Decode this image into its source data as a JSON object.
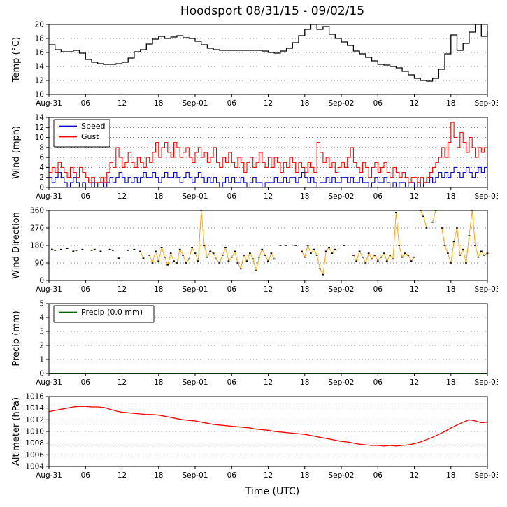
{
  "title": "Hoodsport 08/31/15 - 09/02/15",
  "xlabel": "Time (UTC)",
  "x_axis": {
    "unit": "hours since Aug-31 00:00 UTC",
    "range": [
      0,
      72
    ],
    "tick_positions": [
      0,
      6,
      12,
      18,
      24,
      30,
      36,
      42,
      48,
      54,
      60,
      66,
      72
    ],
    "tick_labels": [
      "Aug-31",
      "06",
      "12",
      "18",
      "Sep-01",
      "06",
      "12",
      "18",
      "Sep-02",
      "06",
      "12",
      "18",
      "Sep-03"
    ]
  },
  "chart_data": [
    {
      "type": "line",
      "ylabel": "Temp (°C)",
      "ylim": [
        10,
        20
      ],
      "yticks": [
        10,
        12,
        14,
        16,
        18,
        20
      ],
      "grid": true,
      "legend": false,
      "series": [
        {
          "name": "Temp",
          "color": "#000000",
          "style": "step",
          "width": 1.3,
          "x_start": 0,
          "x_step": 1,
          "values": [
            17.1,
            16.4,
            16.1,
            16.1,
            16.3,
            15.9,
            15.0,
            14.6,
            14.4,
            14.3,
            14.3,
            14.4,
            14.6,
            15.2,
            16.1,
            16.4,
            17.2,
            17.9,
            18.3,
            18.0,
            18.2,
            18.4,
            18.1,
            18.0,
            17.6,
            17.1,
            16.6,
            16.4,
            16.3,
            16.3,
            16.3,
            16.3,
            16.3,
            16.3,
            16.3,
            16.2,
            16.0,
            15.9,
            16.2,
            16.6,
            17.4,
            18.4,
            19.3,
            20.0,
            19.3,
            19.7,
            18.6,
            18.0,
            17.5,
            17.0,
            16.2,
            15.8,
            15.3,
            14.8,
            14.3,
            14.2,
            14.0,
            13.8,
            13.3,
            12.8,
            12.3,
            12.0,
            11.9,
            12.3,
            13.6,
            15.8,
            18.5,
            16.3,
            17.3,
            18.9,
            20.0,
            18.3,
            19.0
          ]
        }
      ]
    },
    {
      "type": "line",
      "ylabel": "Wind (mph)",
      "ylim": [
        0,
        14
      ],
      "yticks": [
        0,
        2,
        4,
        6,
        8,
        10,
        12,
        14
      ],
      "grid": true,
      "legend": true,
      "series": [
        {
          "name": "Speed",
          "color": "#0000cd",
          "style": "step",
          "width": 1.1,
          "x_start": 0,
          "x_step": 0.5,
          "values": [
            2,
            1,
            2,
            3,
            2,
            1,
            0,
            1,
            2,
            1,
            0,
            1,
            0,
            0,
            1,
            0,
            1,
            1,
            0,
            1,
            2,
            1,
            2,
            3,
            2,
            1,
            2,
            1,
            2,
            1,
            2,
            3,
            2,
            2,
            3,
            2,
            1,
            2,
            3,
            2,
            2,
            3,
            2,
            1,
            2,
            3,
            2,
            1,
            2,
            3,
            2,
            1,
            2,
            1,
            2,
            1,
            0,
            1,
            2,
            1,
            2,
            1,
            1,
            2,
            1,
            0,
            1,
            2,
            1,
            1,
            0,
            1,
            1,
            1,
            2,
            1,
            1,
            2,
            1,
            2,
            2,
            1,
            2,
            3,
            2,
            1,
            2,
            1,
            0,
            1,
            1,
            2,
            1,
            2,
            1,
            1,
            2,
            2,
            1,
            2,
            1,
            1,
            2,
            1,
            1,
            0,
            1,
            2,
            1,
            1,
            2,
            1,
            0,
            1,
            0,
            1,
            1,
            0,
            1,
            1,
            0,
            1,
            0,
            1,
            1,
            2,
            1,
            2,
            3,
            2,
            3,
            2,
            3,
            4,
            3,
            2,
            3,
            4,
            3,
            2,
            3,
            4,
            3,
            4,
            4
          ]
        },
        {
          "name": "Gust",
          "color": "#ff0000",
          "style": "step",
          "width": 1.1,
          "x_start": 0,
          "x_step": 0.5,
          "values": [
            3,
            4,
            3,
            5,
            4,
            3,
            2,
            4,
            3,
            2,
            4,
            3,
            2,
            1,
            2,
            1,
            1,
            2,
            1,
            3,
            5,
            4,
            8,
            6,
            4,
            5,
            7,
            5,
            4,
            6,
            5,
            4,
            6,
            5,
            7,
            9,
            6,
            8,
            9,
            7,
            6,
            9,
            8,
            6,
            7,
            8,
            6,
            5,
            7,
            8,
            6,
            7,
            5,
            6,
            8,
            5,
            4,
            6,
            5,
            7,
            5,
            4,
            6,
            5,
            3,
            5,
            6,
            4,
            5,
            7,
            5,
            4,
            6,
            4,
            6,
            5,
            3,
            5,
            4,
            6,
            5,
            3,
            5,
            4,
            3,
            5,
            4,
            3,
            9,
            7,
            5,
            6,
            4,
            5,
            3,
            4,
            5,
            4,
            6,
            8,
            5,
            4,
            3,
            5,
            4,
            2,
            4,
            5,
            3,
            4,
            5,
            3,
            2,
            4,
            3,
            2,
            3,
            2,
            1,
            2,
            2,
            1,
            2,
            1,
            2,
            3,
            4,
            5,
            6,
            8,
            6,
            9,
            13,
            10,
            8,
            11,
            9,
            7,
            10,
            8,
            6,
            8,
            7,
            8,
            8
          ]
        }
      ]
    },
    {
      "type": "line",
      "ylabel": "Wind Direction",
      "ylim": [
        0,
        360
      ],
      "yticks": [
        0,
        90,
        180,
        270,
        360
      ],
      "grid": true,
      "legend": false,
      "series": [
        {
          "name": "Direction",
          "color": "#ffa500",
          "style": "dash-dots",
          "x_start": 0,
          "x_step": 0.5,
          "values": [
            null,
            160,
            155,
            null,
            160,
            null,
            165,
            null,
            150,
            155,
            null,
            160,
            null,
            null,
            155,
            160,
            null,
            150,
            null,
            null,
            160,
            155,
            null,
            115,
            null,
            null,
            155,
            null,
            160,
            null,
            150,
            115,
            null,
            130,
            90,
            150,
            100,
            170,
            120,
            80,
            140,
            100,
            90,
            160,
            130,
            90,
            110,
            170,
            140,
            100,
            360,
            180,
            120,
            150,
            140,
            110,
            90,
            130,
            170,
            100,
            120,
            150,
            90,
            60,
            130,
            100,
            140,
            110,
            50,
            120,
            160,
            130,
            100,
            140,
            110,
            null,
            180,
            null,
            180,
            null,
            null,
            180,
            null,
            150,
            120,
            180,
            140,
            160,
            130,
            60,
            30,
            150,
            170,
            140,
            160,
            null,
            null,
            180,
            null,
            null,
            130,
            100,
            150,
            120,
            90,
            140,
            110,
            130,
            100,
            120,
            140,
            100,
            130,
            110,
            350,
            180,
            120,
            140,
            130,
            100,
            120,
            null,
            360,
            330,
            270,
            null,
            300,
            360,
            null,
            270,
            180,
            140,
            90,
            200,
            270,
            130,
            160,
            90,
            230,
            360,
            180,
            120,
            150,
            130,
            140
          ]
        }
      ]
    },
    {
      "type": "line",
      "ylabel": "Precip (mm)",
      "ylim": [
        0,
        5
      ],
      "yticks": [
        0,
        1,
        2,
        3,
        4,
        5
      ],
      "grid": true,
      "legend": true,
      "series": [
        {
          "name": "Precip (0.0 mm)",
          "color": "#006400",
          "style": "line",
          "width": 2,
          "x": [
            0,
            72
          ],
          "values": [
            0,
            0
          ]
        }
      ]
    },
    {
      "type": "line",
      "ylabel": "Altimeter (hPa)",
      "ylim": [
        1004,
        1016
      ],
      "yticks": [
        1004,
        1006,
        1008,
        1010,
        1012,
        1014,
        1016
      ],
      "grid": true,
      "legend": false,
      "series": [
        {
          "name": "Altimeter",
          "color": "#ff0000",
          "style": "line",
          "width": 1.3,
          "x_start": 0,
          "x_step": 1,
          "values": [
            1013.4,
            1013.6,
            1013.8,
            1014.0,
            1014.2,
            1014.3,
            1014.3,
            1014.2,
            1014.2,
            1014.1,
            1013.8,
            1013.5,
            1013.3,
            1013.2,
            1013.1,
            1013.0,
            1012.9,
            1012.9,
            1012.8,
            1012.6,
            1012.4,
            1012.2,
            1012.0,
            1011.9,
            1011.8,
            1011.6,
            1011.4,
            1011.2,
            1011.1,
            1011.0,
            1010.9,
            1010.8,
            1010.7,
            1010.6,
            1010.4,
            1010.3,
            1010.2,
            1010.0,
            1009.9,
            1009.8,
            1009.7,
            1009.6,
            1009.5,
            1009.3,
            1009.1,
            1008.9,
            1008.7,
            1008.5,
            1008.3,
            1008.2,
            1008.0,
            1007.8,
            1007.7,
            1007.6,
            1007.6,
            1007.5,
            1007.6,
            1007.5,
            1007.6,
            1007.7,
            1007.9,
            1008.2,
            1008.6,
            1009.0,
            1009.5,
            1010.0,
            1010.6,
            1011.1,
            1011.6,
            1012.0,
            1011.8,
            1011.5,
            1011.6
          ]
        }
      ]
    }
  ]
}
